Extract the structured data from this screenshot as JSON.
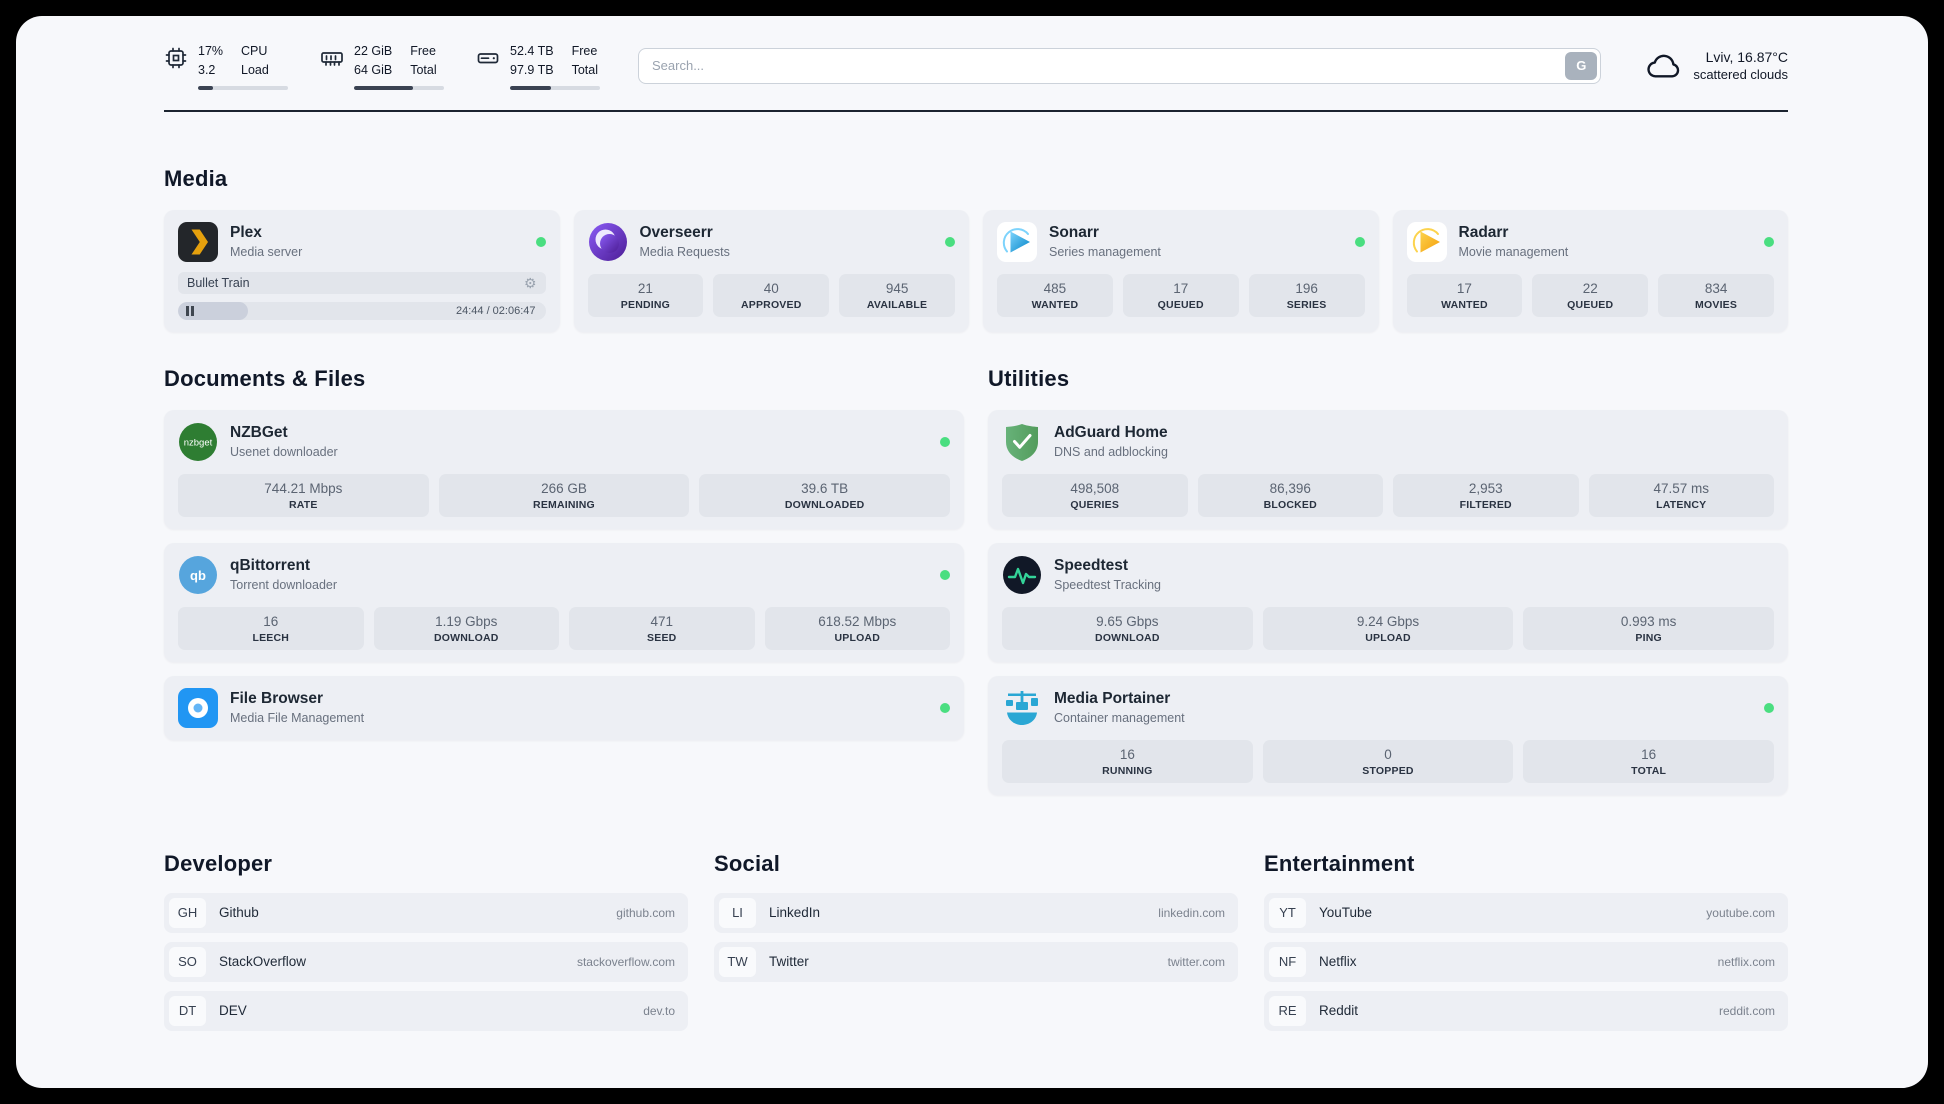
{
  "header": {
    "system": [
      {
        "icon": "cpu-icon",
        "col1": [
          "17%",
          "3.2"
        ],
        "col2": [
          "CPU",
          "Load"
        ],
        "progress": 17
      },
      {
        "icon": "ram-icon",
        "col1": [
          "22 GiB",
          "64 GiB"
        ],
        "col2": [
          "Free",
          "Total"
        ],
        "progress": 66
      },
      {
        "icon": "disk-icon",
        "col1": [
          "52.4 TB",
          "97.9 TB"
        ],
        "col2": [
          "Free",
          "Total"
        ],
        "progress": 46
      }
    ],
    "search": {
      "placeholder": "Search...",
      "provider_label": "G"
    },
    "weather": {
      "icon": "cloud-icon",
      "location": "Lviv, 16.87°C",
      "condition": "scattered clouds"
    }
  },
  "colors": {
    "status_online": "#4ade80",
    "accent_green": "#34d399"
  },
  "service_groups": [
    {
      "title": "Media",
      "services": [
        {
          "name": "Plex",
          "subtitle": "Media server",
          "icon": "plex-icon",
          "online": true,
          "player": {
            "title": "Bullet Train",
            "time": "24:44 / 02:06:47",
            "progress": 19
          }
        },
        {
          "name": "Overseerr",
          "subtitle": "Media Requests",
          "icon": "overseerr-icon",
          "online": true,
          "stats": [
            {
              "value": "21",
              "label": "PENDING"
            },
            {
              "value": "40",
              "label": "APPROVED"
            },
            {
              "value": "945",
              "label": "AVAILABLE"
            }
          ]
        },
        {
          "name": "Sonarr",
          "subtitle": "Series management",
          "icon": "sonarr-icon",
          "online": true,
          "stats": [
            {
              "value": "485",
              "label": "WANTED"
            },
            {
              "value": "17",
              "label": "QUEUED"
            },
            {
              "value": "196",
              "label": "SERIES"
            }
          ]
        },
        {
          "name": "Radarr",
          "subtitle": "Movie management",
          "icon": "radarr-icon",
          "online": true,
          "stats": [
            {
              "value": "17",
              "label": "WANTED"
            },
            {
              "value": "22",
              "label": "QUEUED"
            },
            {
              "value": "834",
              "label": "MOVIES"
            }
          ]
        }
      ]
    },
    {
      "title": "Documents & Files",
      "services": [
        {
          "name": "NZBGet",
          "subtitle": "Usenet downloader",
          "icon": "nzbget-icon",
          "online": true,
          "stats": [
            {
              "value": "744.21 Mbps",
              "label": "RATE"
            },
            {
              "value": "266 GB",
              "label": "REMAINING"
            },
            {
              "value": "39.6 TB",
              "label": "DOWNLOADED"
            }
          ]
        },
        {
          "name": "qBittorrent",
          "subtitle": "Torrent downloader",
          "icon": "qbittorrent-icon",
          "online": true,
          "stats": [
            {
              "value": "16",
              "label": "LEECH"
            },
            {
              "value": "1.19 Gbps",
              "label": "DOWNLOAD"
            },
            {
              "value": "471",
              "label": "SEED"
            },
            {
              "value": "618.52 Mbps",
              "label": "UPLOAD"
            }
          ]
        },
        {
          "name": "File Browser",
          "subtitle": "Media File Management",
          "icon": "filebrowser-icon",
          "online": true
        }
      ]
    },
    {
      "title": "Utilities",
      "services": [
        {
          "name": "AdGuard Home",
          "subtitle": "DNS and adblocking",
          "icon": "adguard-icon",
          "online": false,
          "stats": [
            {
              "value": "498,508",
              "label": "QUERIES"
            },
            {
              "value": "86,396",
              "label": "BLOCKED"
            },
            {
              "value": "2,953",
              "label": "FILTERED"
            },
            {
              "value": "47.57 ms",
              "label": "LATENCY"
            }
          ]
        },
        {
          "name": "Speedtest",
          "subtitle": "Speedtest Tracking",
          "icon": "speedtest-icon",
          "online": false,
          "stats": [
            {
              "value": "9.65 Gbps",
              "label": "DOWNLOAD"
            },
            {
              "value": "9.24 Gbps",
              "label": "UPLOAD"
            },
            {
              "value": "0.993 ms",
              "label": "PING"
            }
          ]
        },
        {
          "name": "Media Portainer",
          "subtitle": "Container management",
          "icon": "portainer-icon",
          "online": true,
          "stats": [
            {
              "value": "16",
              "label": "RUNNING"
            },
            {
              "value": "0",
              "label": "STOPPED"
            },
            {
              "value": "16",
              "label": "TOTAL"
            }
          ]
        }
      ]
    }
  ],
  "bookmark_groups": [
    {
      "title": "Developer",
      "bookmarks": [
        {
          "abbr": "GH",
          "name": "Github",
          "domain": "github.com"
        },
        {
          "abbr": "SO",
          "name": "StackOverflow",
          "domain": "stackoverflow.com"
        },
        {
          "abbr": "DT",
          "name": "DEV",
          "domain": "dev.to"
        }
      ]
    },
    {
      "title": "Social",
      "bookmarks": [
        {
          "abbr": "LI",
          "name": "LinkedIn",
          "domain": "linkedin.com"
        },
        {
          "abbr": "TW",
          "name": "Twitter",
          "domain": "twitter.com"
        }
      ]
    },
    {
      "title": "Entertainment",
      "bookmarks": [
        {
          "abbr": "YT",
          "name": "YouTube",
          "domain": "youtube.com"
        },
        {
          "abbr": "NF",
          "name": "Netflix",
          "domain": "netflix.com"
        },
        {
          "abbr": "RE",
          "name": "Reddit",
          "domain": "reddit.com"
        }
      ]
    }
  ]
}
